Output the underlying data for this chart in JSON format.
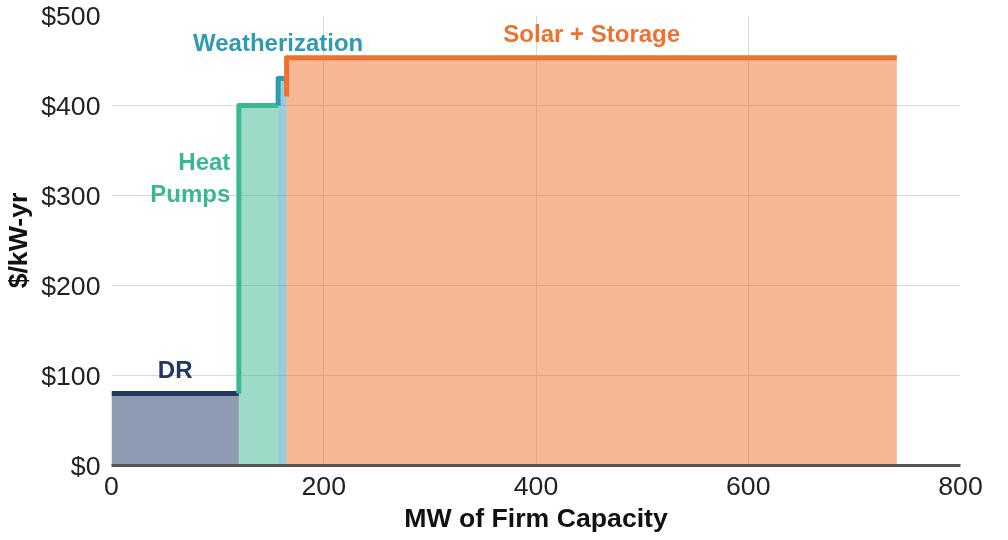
{
  "chart_data": {
    "type": "area",
    "xlabel": "MW of Firm Capacity",
    "ylabel": "$/kW-yr",
    "xlim": [
      0,
      800
    ],
    "xticks": [
      0,
      200,
      400,
      600,
      800
    ],
    "ylim": [
      0,
      500
    ],
    "yticks": [
      {
        "value": 0,
        "label": "$0"
      },
      {
        "value": 100,
        "label": "$100"
      },
      {
        "value": 200,
        "label": "$200"
      },
      {
        "value": 300,
        "label": "$300"
      },
      {
        "value": 400,
        "label": "$400"
      },
      {
        "value": 500,
        "label": "$500"
      }
    ],
    "grid": true,
    "series": [
      {
        "name": "DR",
        "color": "#1f3864",
        "x": [
          0,
          120
        ],
        "values": [
          80,
          80
        ]
      },
      {
        "name": "Heat\nPumps",
        "color": "#3bb891",
        "x": [
          120,
          120,
          157
        ],
        "values": [
          80,
          400,
          400
        ]
      },
      {
        "name": "Weatherization",
        "color": "#2e9bb0",
        "x": [
          157,
          157,
          165
        ],
        "values": [
          400,
          430,
          430
        ]
      },
      {
        "name": "Solar + Storage",
        "color": "#f07030",
        "x": [
          165,
          165,
          740
        ],
        "values": [
          410,
          453,
          453
        ]
      }
    ]
  }
}
